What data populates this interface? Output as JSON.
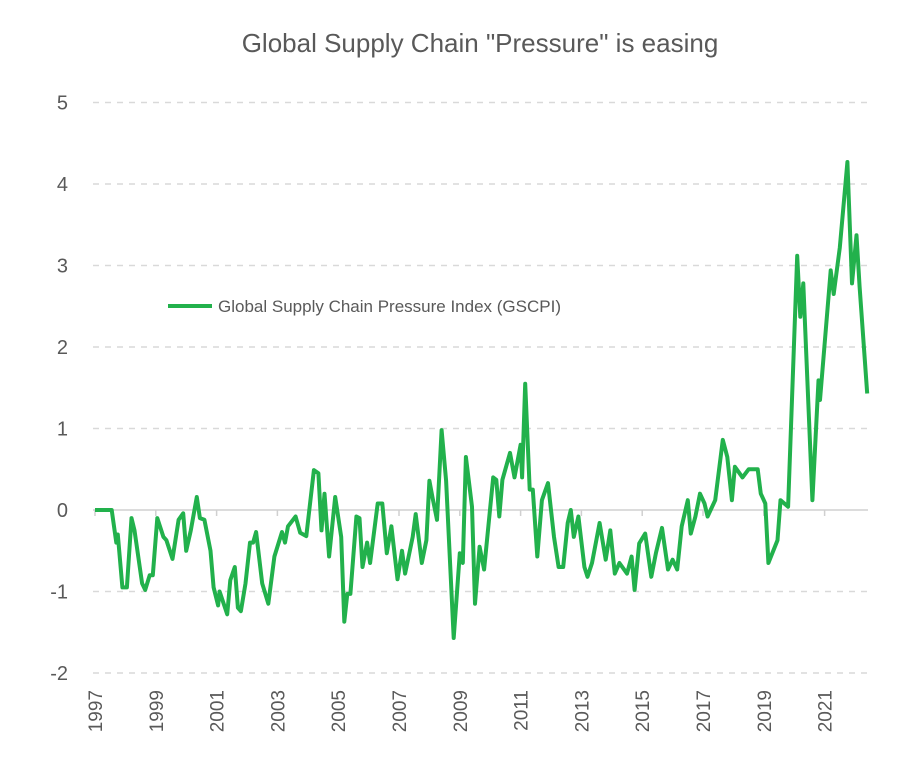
{
  "chart_data": {
    "type": "line",
    "title": "Global Supply Chain \"Pressure\" is easing",
    "xlabel": "",
    "ylabel": "",
    "ylim": [
      -2,
      5
    ],
    "xlim": [
      1997,
      2022.4
    ],
    "yticks": [
      "5",
      "4",
      "3",
      "2",
      "1",
      "0",
      "-1",
      "-2"
    ],
    "xticks": [
      "1997",
      "1999",
      "2001",
      "2003",
      "2005",
      "2007",
      "2009",
      "2011",
      "2013",
      "2015",
      "2017",
      "2019",
      "2021"
    ],
    "grid": "horizontal dashed",
    "legend_position": "left-middle",
    "line_color": "#22b14c",
    "series": [
      {
        "name": "Global Supply Chain Pressure Index (GSCPI)",
        "x": [
          1997.0,
          1997.55,
          1997.7,
          1997.75,
          1997.9,
          1998.05,
          1998.2,
          1998.3,
          1998.55,
          1998.65,
          1998.8,
          1998.9,
          1999.05,
          1999.25,
          1999.35,
          1999.55,
          1999.75,
          1999.9,
          2000.0,
          2000.15,
          2000.35,
          2000.45,
          2000.6,
          2000.8,
          2000.9,
          2001.05,
          2001.1,
          2001.35,
          2001.45,
          2001.6,
          2001.7,
          2001.8,
          2001.95,
          2002.1,
          2002.2,
          2002.3,
          2002.5,
          2002.7,
          2002.9,
          2003.15,
          2003.25,
          2003.35,
          2003.6,
          2003.75,
          2003.95,
          2004.2,
          2004.35,
          2004.45,
          2004.55,
          2004.7,
          2004.9,
          2005.1,
          2005.2,
          2005.3,
          2005.4,
          2005.6,
          2005.7,
          2005.8,
          2005.95,
          2006.05,
          2006.3,
          2006.45,
          2006.6,
          2006.75,
          2006.95,
          2007.1,
          2007.2,
          2007.45,
          2007.55,
          2007.75,
          2007.9,
          2008.0,
          2008.1,
          2008.25,
          2008.4,
          2008.55,
          2008.8,
          2009.0,
          2009.1,
          2009.2,
          2009.4,
          2009.5,
          2009.65,
          2009.8,
          2010.1,
          2010.2,
          2010.3,
          2010.4,
          2010.65,
          2010.8,
          2011.0,
          2011.05,
          2011.15,
          2011.3,
          2011.4,
          2011.55,
          2011.7,
          2011.9,
          2012.1,
          2012.25,
          2012.4,
          2012.55,
          2012.65,
          2012.75,
          2012.9,
          2013.1,
          2013.2,
          2013.35,
          2013.6,
          2013.8,
          2013.95,
          2014.1,
          2014.25,
          2014.5,
          2014.65,
          2014.75,
          2014.9,
          2015.1,
          2015.3,
          2015.45,
          2015.65,
          2015.85,
          2016.0,
          2016.15,
          2016.3,
          2016.5,
          2016.6,
          2016.75,
          2016.9,
          2017.05,
          2017.15,
          2017.4,
          2017.65,
          2017.8,
          2017.95,
          2018.05,
          2018.3,
          2018.5,
          2018.8,
          2018.9,
          2019.05,
          2019.15,
          2019.45,
          2019.55,
          2019.8,
          2020.1,
          2020.2,
          2020.3,
          2020.6,
          2020.8,
          2020.85,
          2021.2,
          2021.3,
          2021.5,
          2021.75,
          2021.9,
          2022.05,
          2022.15,
          2022.4
        ],
        "values": [
          0,
          0,
          -0.4,
          -0.3,
          -0.95,
          -0.95,
          -0.1,
          -0.25,
          -0.9,
          -0.98,
          -0.8,
          -0.8,
          -0.1,
          -0.33,
          -0.37,
          -0.6,
          -0.12,
          -0.04,
          -0.5,
          -0.25,
          0.16,
          -0.1,
          -0.12,
          -0.5,
          -0.95,
          -1.17,
          -1.0,
          -1.28,
          -0.86,
          -0.7,
          -1.2,
          -1.24,
          -0.9,
          -0.4,
          -0.4,
          -0.27,
          -0.9,
          -1.15,
          -0.57,
          -0.27,
          -0.4,
          -0.2,
          -0.08,
          -0.28,
          -0.32,
          0.49,
          0.45,
          -0.25,
          0.2,
          -0.57,
          0.16,
          -0.33,
          -1.37,
          -1.03,
          -1.03,
          -0.08,
          -0.1,
          -0.7,
          -0.4,
          -0.65,
          0.08,
          0.08,
          -0.53,
          -0.2,
          -0.85,
          -0.5,
          -0.78,
          -0.33,
          -0.05,
          -0.65,
          -0.37,
          0.36,
          0.16,
          -0.12,
          0.98,
          0.36,
          -1.57,
          -0.53,
          -0.65,
          0.65,
          0.04,
          -1.15,
          -0.45,
          -0.73,
          0.4,
          0.37,
          -0.08,
          0.37,
          0.7,
          0.4,
          0.8,
          0.4,
          1.55,
          0.25,
          0.25,
          -0.57,
          0.12,
          0.33,
          -0.33,
          -0.7,
          -0.7,
          -0.16,
          0,
          -0.33,
          -0.08,
          -0.7,
          -0.82,
          -0.65,
          -0.16,
          -0.61,
          -0.25,
          -0.78,
          -0.65,
          -0.78,
          -0.57,
          -0.98,
          -0.41,
          -0.29,
          -0.82,
          -0.53,
          -0.22,
          -0.73,
          -0.61,
          -0.73,
          -0.2,
          0.12,
          -0.29,
          -0.08,
          0.2,
          0.08,
          -0.08,
          0.12,
          0.86,
          0.65,
          0.12,
          0.53,
          0.4,
          0.5,
          0.5,
          0.2,
          0.08,
          -0.65,
          -0.37,
          0.12,
          0.04,
          3.12,
          2.37,
          2.78,
          0.12,
          1.59,
          1.35,
          2.94,
          2.65,
          3.22,
          4.27,
          2.78,
          3.37,
          2.74,
          1.43
        ]
      }
    ]
  }
}
